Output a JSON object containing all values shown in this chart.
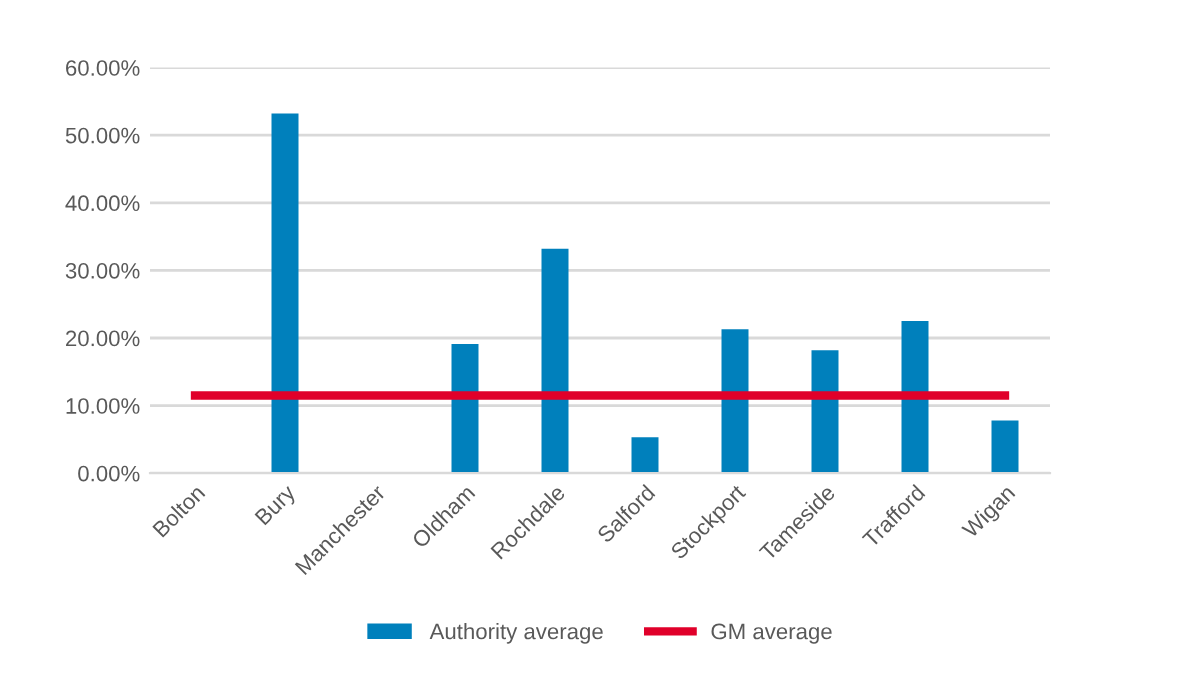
{
  "chart_data": {
    "type": "bar",
    "categories": [
      "Bolton",
      "Bury",
      "Manchester",
      "Oldham",
      "Rochdale",
      "Salford",
      "Stockport",
      "Tameside",
      "Trafford",
      "Wigan"
    ],
    "series": [
      {
        "name": "Authority average",
        "color": "#0080bc",
        "values": [
          0,
          53.2,
          0,
          19.1,
          33.2,
          5.3,
          21.3,
          18.2,
          22.5,
          7.8
        ]
      },
      {
        "name": "GM average",
        "type": "line",
        "color": "#e0002a",
        "values": [
          11.5,
          11.5,
          11.5,
          11.5,
          11.5,
          11.5,
          11.5,
          11.5,
          11.5,
          11.5
        ]
      }
    ],
    "ylim": [
      0,
      60
    ],
    "yticks": [
      {
        "value": 0,
        "label": "0.00%"
      },
      {
        "value": 10,
        "label": "10.00%"
      },
      {
        "value": 20,
        "label": "20.00%"
      },
      {
        "value": 30,
        "label": "30.00%"
      },
      {
        "value": 40,
        "label": "40.00%"
      },
      {
        "value": 50,
        "label": "50.00%"
      },
      {
        "value": 60,
        "label": "60.00%"
      }
    ],
    "grid": "y",
    "legend": "bottom",
    "marker": "none",
    "line_style": "solid"
  }
}
